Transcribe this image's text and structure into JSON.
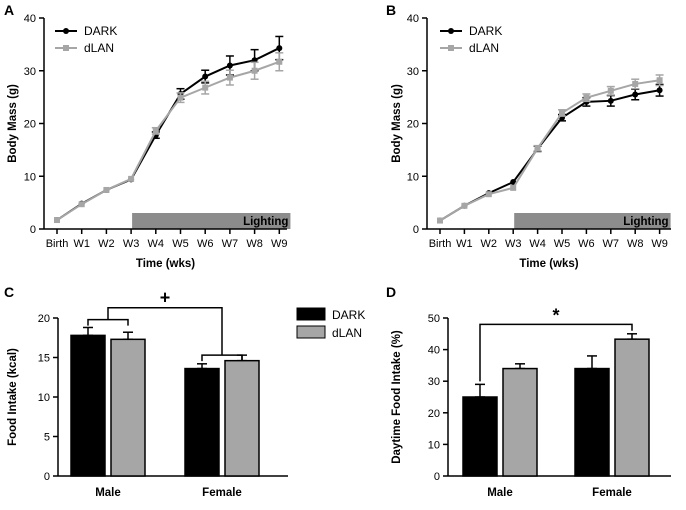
{
  "figure": {
    "colors": {
      "dark": "#000000",
      "dlan": "#a6a6a6",
      "lighting_bar": "#8c8c8c",
      "axis": "#000000"
    }
  },
  "chart_data": [
    {
      "panel": "A",
      "type": "line",
      "xlabel": "Time (wks)",
      "ylabel": "Body Mass (g)",
      "categories": [
        "Birth",
        "W1",
        "W2",
        "W3",
        "W4",
        "W5",
        "W6",
        "W7",
        "W8",
        "W9"
      ],
      "ylim": [
        0,
        40
      ],
      "yticks": [
        0,
        10,
        20,
        30,
        40
      ],
      "series": [
        {
          "name": "DARK",
          "color": "#000000",
          "marker": "circle",
          "values": [
            1.7,
            4.8,
            7.4,
            9.4,
            17.8,
            25.6,
            28.9,
            31.0,
            32.0,
            34.3
          ],
          "errors": [
            0.2,
            0.2,
            0.3,
            0.3,
            0.6,
            1.0,
            1.2,
            1.8,
            2.0,
            2.2
          ]
        },
        {
          "name": "dLAN",
          "color": "#a6a6a6",
          "marker": "square",
          "values": [
            1.7,
            4.7,
            7.4,
            9.5,
            18.6,
            24.9,
            26.8,
            28.7,
            30.0,
            31.7
          ],
          "errors": [
            0.2,
            0.2,
            0.3,
            0.3,
            0.6,
            0.9,
            1.2,
            1.4,
            1.6,
            1.7
          ]
        }
      ],
      "lighting": {
        "label": "Lighting",
        "from": "W3",
        "to": "W9"
      },
      "legend": [
        "DARK",
        "dLAN"
      ]
    },
    {
      "panel": "B",
      "type": "line",
      "xlabel": "Time (wks)",
      "ylabel": "Body Mass (g)",
      "categories": [
        "Birth",
        "W1",
        "W2",
        "W3",
        "W4",
        "W5",
        "W6",
        "W7",
        "W8",
        "W9"
      ],
      "ylim": [
        0,
        40
      ],
      "yticks": [
        0,
        10,
        20,
        30,
        40
      ],
      "series": [
        {
          "name": "DARK",
          "color": "#000000",
          "marker": "circle",
          "values": [
            1.6,
            4.4,
            6.8,
            8.9,
            15.2,
            21.1,
            24.1,
            24.3,
            25.5,
            26.3
          ],
          "errors": [
            0.2,
            0.2,
            0.3,
            0.3,
            0.5,
            0.6,
            0.8,
            1.0,
            1.0,
            1.1
          ]
        },
        {
          "name": "dLAN",
          "color": "#a6a6a6",
          "marker": "square",
          "values": [
            1.6,
            4.4,
            6.6,
            7.8,
            15.3,
            22.0,
            24.9,
            26.2,
            27.5,
            28.2
          ],
          "errors": [
            0.2,
            0.2,
            0.3,
            0.3,
            0.5,
            0.6,
            0.7,
            0.8,
            0.9,
            1.0
          ]
        }
      ],
      "lighting": {
        "label": "Lighting",
        "from": "W3",
        "to": "W9"
      },
      "legend": [
        "DARK",
        "dLAN"
      ]
    },
    {
      "panel": "C",
      "type": "bar",
      "xlabel": "",
      "ylabel": "Food Intake (kcal)",
      "categories": [
        "Male",
        "Female"
      ],
      "ylim": [
        0,
        20
      ],
      "yticks": [
        0,
        5,
        10,
        15,
        20
      ],
      "series": [
        {
          "name": "DARK",
          "color": "#000000",
          "values": [
            17.8,
            13.6
          ],
          "errors": [
            1.0,
            0.6
          ]
        },
        {
          "name": "dLAN",
          "color": "#a6a6a6",
          "values": [
            17.3,
            14.6
          ],
          "errors": [
            0.9,
            0.7
          ]
        }
      ],
      "annotation": {
        "text": "+",
        "between": [
          "Male",
          "Female"
        ]
      },
      "legend": [
        "DARK",
        "dLAN"
      ]
    },
    {
      "panel": "D",
      "type": "bar",
      "xlabel": "",
      "ylabel": "Daytime Food Intake (%)",
      "categories": [
        "Male",
        "Female"
      ],
      "ylim": [
        0,
        50
      ],
      "yticks": [
        0,
        10,
        20,
        30,
        40,
        50
      ],
      "series": [
        {
          "name": "DARK",
          "color": "#000000",
          "values": [
            25.0,
            34.0
          ],
          "errors": [
            4.0,
            4.0
          ]
        },
        {
          "name": "dLAN",
          "color": "#a6a6a6",
          "values": [
            34.0,
            43.3
          ],
          "errors": [
            1.5,
            1.7
          ]
        }
      ],
      "annotation": {
        "text": "*",
        "between": [
          "Male DARK",
          "Female dLAN"
        ]
      }
    }
  ]
}
